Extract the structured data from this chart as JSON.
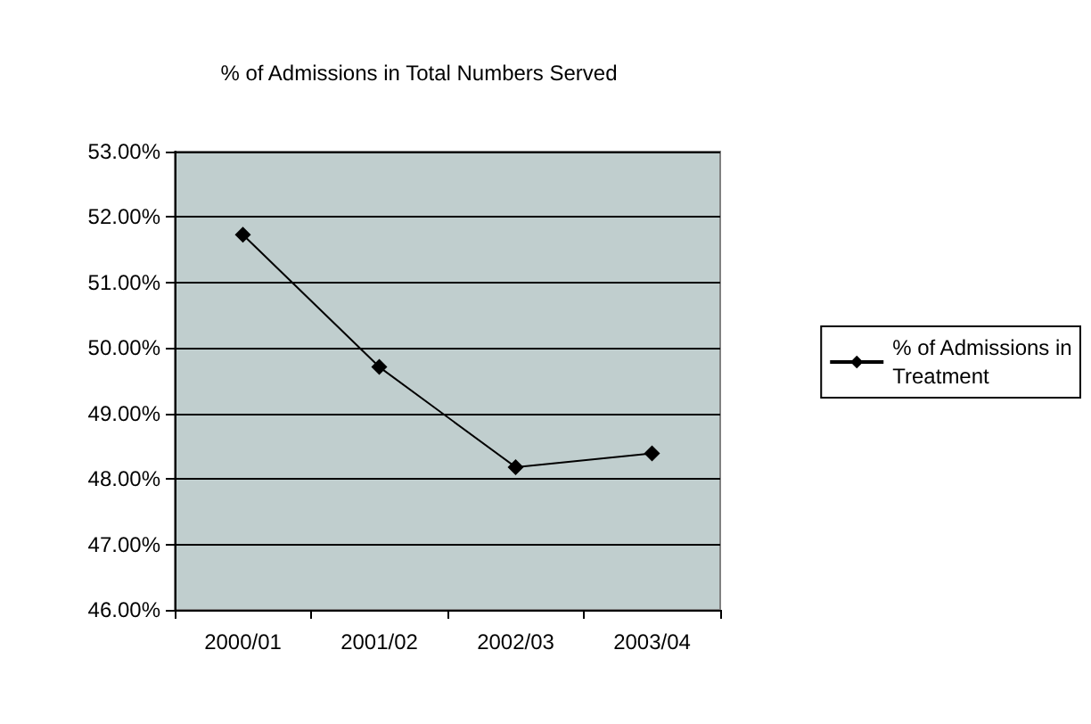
{
  "chart_data": {
    "type": "line",
    "title": "% of Admissions in Total Numbers Served",
    "categories": [
      "2000/01",
      "2001/02",
      "2002/03",
      "2003/04"
    ],
    "series": [
      {
        "name": "% of Admissions in Treatment",
        "color": "#000000",
        "values": [
          51.73,
          49.71,
          48.18,
          48.39
        ]
      }
    ],
    "ylim": [
      46,
      53
    ],
    "yticks": [
      {
        "value": 46,
        "label": "46.00%"
      },
      {
        "value": 47,
        "label": "47.00%"
      },
      {
        "value": 48,
        "label": "48.00%"
      },
      {
        "value": 49,
        "label": "49.00%"
      },
      {
        "value": 50,
        "label": "50.00%"
      },
      {
        "value": 51,
        "label": "51.00%"
      },
      {
        "value": 52,
        "label": "52.00%"
      },
      {
        "value": 53,
        "label": "53.00%"
      }
    ],
    "grid": "y",
    "legend": "right",
    "marker": "diamond",
    "line_style": "solid"
  }
}
